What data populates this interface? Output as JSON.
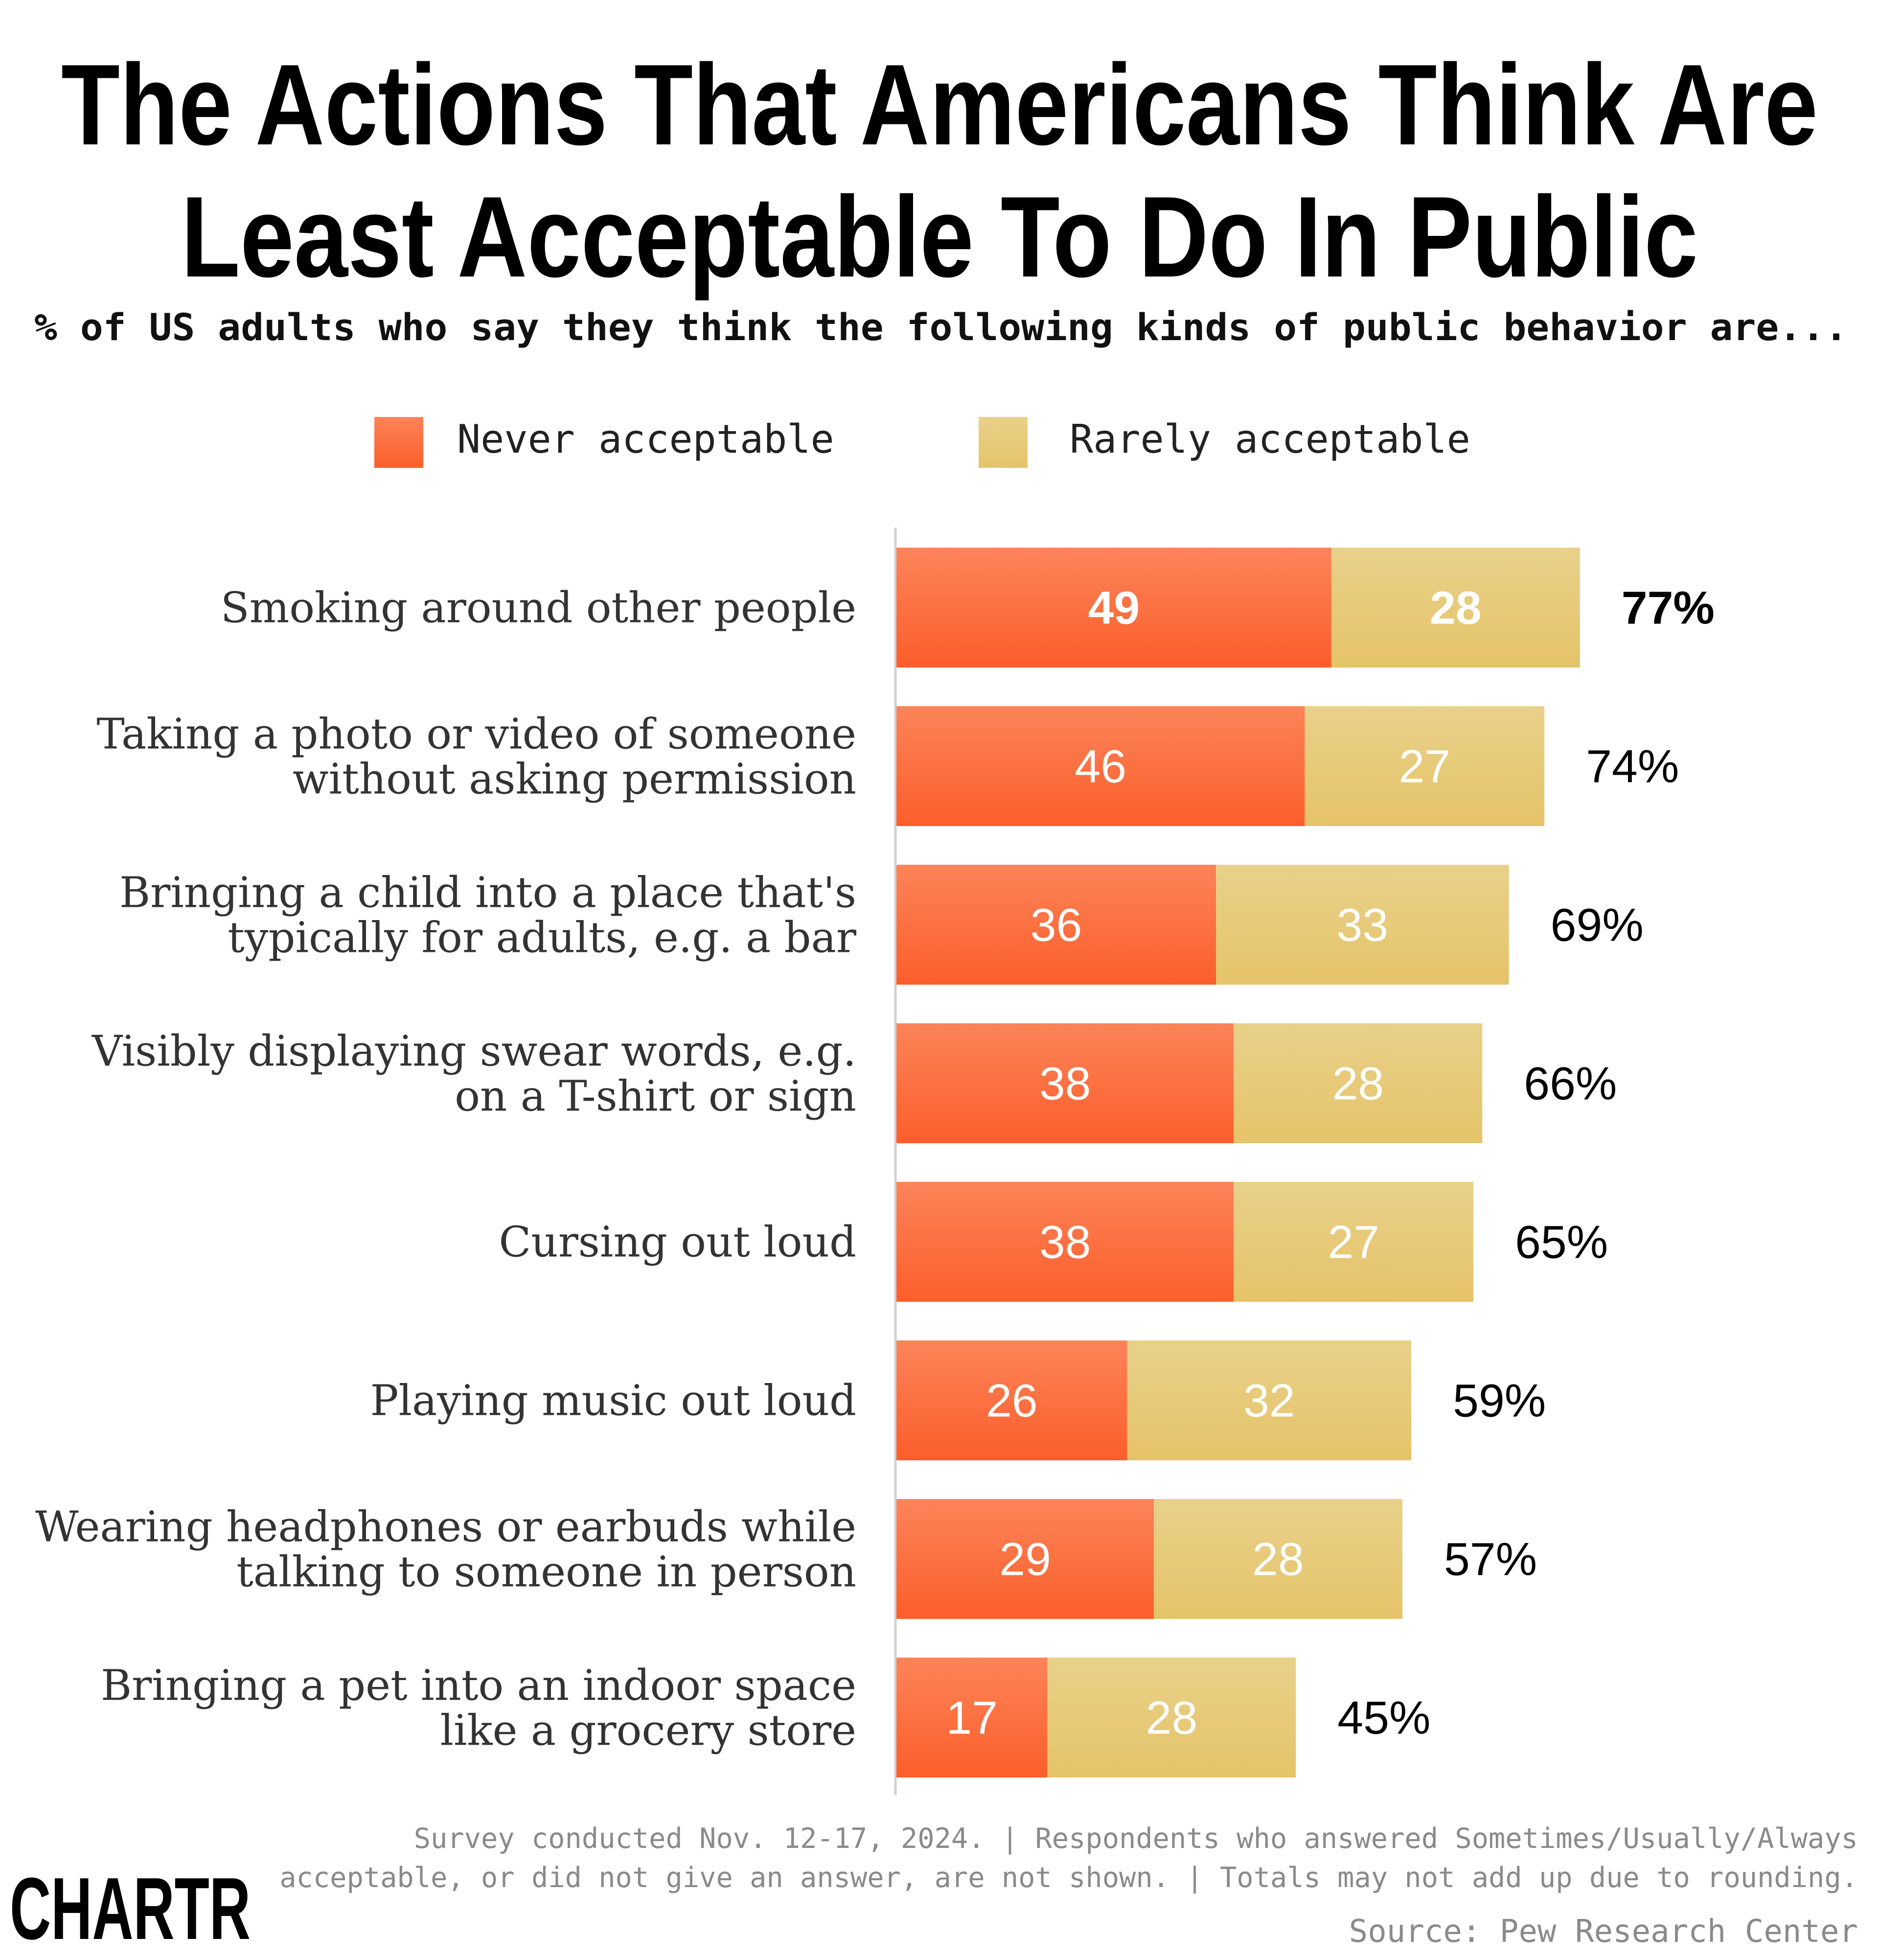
{
  "chart_data": {
    "type": "bar",
    "orientation": "horizontal",
    "stacked": true,
    "title_lines": [
      "The Actions That Americans Think Are",
      "Least Acceptable To Do In Public"
    ],
    "subtitle": "% of US adults who say they think the following kinds of public behavior are...",
    "legend_position": "top",
    "grid": false,
    "xlim": [
      0,
      100
    ],
    "categories": [
      [
        "Smoking around other people"
      ],
      [
        "Taking a photo or video of someone",
        "without asking permission"
      ],
      [
        "Bringing a child into a place that's",
        "typically for adults, e.g. a bar"
      ],
      [
        "Visibly displaying swear words, e.g.",
        "on a T-shirt or sign"
      ],
      [
        "Cursing out loud"
      ],
      [
        "Playing music out loud"
      ],
      [
        "Wearing headphones or earbuds while",
        "talking to someone in person"
      ],
      [
        "Bringing a pet into an indoor space",
        "like a grocery store"
      ]
    ],
    "series": [
      {
        "name": "Never acceptable",
        "color": "#FB6A3A",
        "values": [
          49,
          46,
          36,
          38,
          38,
          26,
          29,
          17
        ]
      },
      {
        "name": "Rarely acceptable",
        "color": "#E7C978",
        "values": [
          28,
          27,
          33,
          28,
          27,
          32,
          28,
          28
        ]
      }
    ],
    "totals": [
      "77%",
      "74%",
      "69%",
      "66%",
      "65%",
      "59%",
      "57%",
      "45%"
    ]
  },
  "footer": {
    "note_lines": [
      "Survey conducted Nov. 12-17, 2024. | Respondents who answered Sometimes/Usually/Always",
      "acceptable, or did not give an answer, are not shown. | Totals may not add up due to rounding."
    ],
    "source": "Source: Pew Research Center"
  },
  "logo": "CHARTR"
}
